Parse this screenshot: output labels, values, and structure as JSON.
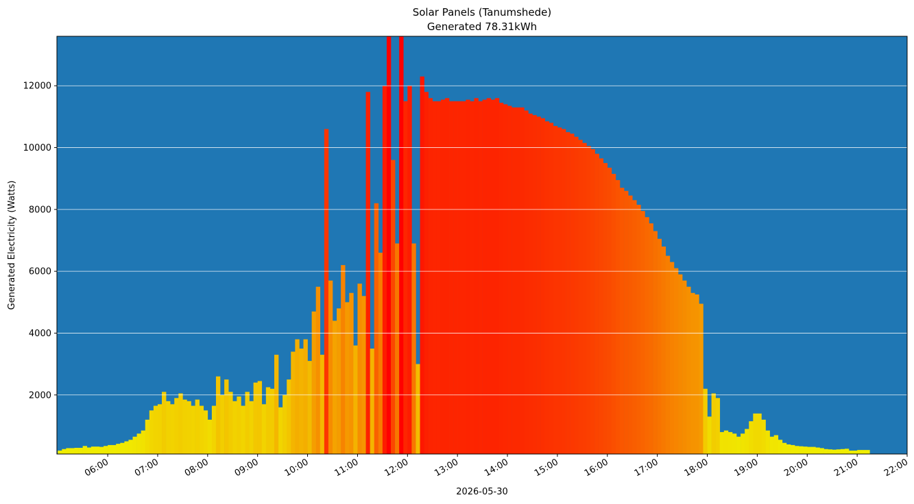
{
  "chart_data": {
    "type": "bar",
    "title": "Solar Panels (Tanumshede)",
    "subtitle": "Generated 78.31kWh",
    "ylabel": "Generated Electricity (Watts)",
    "xlabel": "2026-05-30",
    "background": "#1f77b4",
    "color_low": "#f0f000",
    "color_high": "#ff0000",
    "grid": true,
    "xlim": [
      "04:59",
      "22:00"
    ],
    "xticks": [
      "06:00",
      "07:00",
      "08:00",
      "09:00",
      "10:00",
      "11:00",
      "12:00",
      "13:00",
      "14:00",
      "15:00",
      "16:00",
      "17:00",
      "18:00",
      "19:00",
      "20:00",
      "21:00",
      "22:00"
    ],
    "ylim": [
      90,
      13600
    ],
    "yticks": [
      2000,
      4000,
      6000,
      8000,
      10000,
      12000
    ],
    "x": [
      "05:00",
      "05:05",
      "05:10",
      "05:15",
      "05:20",
      "05:25",
      "05:30",
      "05:35",
      "05:40",
      "05:45",
      "05:50",
      "05:55",
      "06:00",
      "06:05",
      "06:10",
      "06:15",
      "06:20",
      "06:25",
      "06:30",
      "06:35",
      "06:40",
      "06:45",
      "06:50",
      "06:55",
      "07:00",
      "07:05",
      "07:10",
      "07:15",
      "07:20",
      "07:25",
      "07:30",
      "07:35",
      "07:40",
      "07:45",
      "07:50",
      "07:55",
      "08:00",
      "08:05",
      "08:10",
      "08:15",
      "08:20",
      "08:25",
      "08:30",
      "08:35",
      "08:40",
      "08:45",
      "08:50",
      "08:55",
      "09:00",
      "09:05",
      "09:10",
      "09:15",
      "09:20",
      "09:25",
      "09:30",
      "09:35",
      "09:40",
      "09:45",
      "09:50",
      "09:55",
      "10:00",
      "10:05",
      "10:10",
      "10:15",
      "10:20",
      "10:25",
      "10:30",
      "10:35",
      "10:40",
      "10:45",
      "10:50",
      "10:55",
      "11:00",
      "11:05",
      "11:10",
      "11:15",
      "11:20",
      "11:25",
      "11:30",
      "11:35",
      "11:40",
      "11:45",
      "11:50",
      "11:55",
      "12:00",
      "12:05",
      "12:10",
      "12:15",
      "12:20",
      "12:25",
      "12:30",
      "12:35",
      "12:40",
      "12:45",
      "12:50",
      "12:55",
      "13:00",
      "13:05",
      "13:10",
      "13:15",
      "13:20",
      "13:25",
      "13:30",
      "13:35",
      "13:40",
      "13:45",
      "13:50",
      "13:55",
      "14:00",
      "14:05",
      "14:10",
      "14:15",
      "14:20",
      "14:25",
      "14:30",
      "14:35",
      "14:40",
      "14:45",
      "14:50",
      "14:55",
      "15:00",
      "15:05",
      "15:10",
      "15:15",
      "15:20",
      "15:25",
      "15:30",
      "15:35",
      "15:40",
      "15:45",
      "15:50",
      "15:55",
      "16:00",
      "16:05",
      "16:10",
      "16:15",
      "16:20",
      "16:25",
      "16:30",
      "16:35",
      "16:40",
      "16:45",
      "16:50",
      "16:55",
      "17:00",
      "17:05",
      "17:10",
      "17:15",
      "17:20",
      "17:25",
      "17:30",
      "17:35",
      "17:40",
      "17:45",
      "17:50",
      "17:55",
      "18:00",
      "18:05",
      "18:10",
      "18:15",
      "18:20",
      "18:25",
      "18:30",
      "18:35",
      "18:40",
      "18:45",
      "18:50",
      "18:55",
      "19:00",
      "19:05",
      "19:10",
      "19:15",
      "19:20",
      "19:25",
      "19:30",
      "19:35",
      "19:40",
      "19:45",
      "19:50",
      "19:55",
      "20:00",
      "20:05",
      "20:10",
      "20:15",
      "20:20",
      "20:25",
      "20:30",
      "20:35",
      "20:40",
      "20:45",
      "20:50",
      "20:55",
      "21:00",
      "21:05",
      "21:10",
      "21:15",
      "21:20",
      "21:25",
      "21:30"
    ],
    "values": [
      200,
      250,
      280,
      280,
      290,
      290,
      350,
      300,
      330,
      330,
      320,
      350,
      380,
      380,
      420,
      450,
      500,
      550,
      650,
      750,
      850,
      1200,
      1500,
      1650,
      1700,
      2100,
      1800,
      1700,
      1900,
      2050,
      1850,
      1800,
      1650,
      1850,
      1650,
      1500,
      1200,
      1650,
      2600,
      2000,
      2500,
      2100,
      1800,
      1950,
      1650,
      2100,
      1800,
      2400,
      2450,
      1700,
      2250,
      2200,
      3300,
      1600,
      2000,
      2500,
      3400,
      3800,
      3500,
      3800,
      3100,
      4700,
      5500,
      3300,
      10600,
      5700,
      4400,
      4800,
      6200,
      5000,
      5300,
      3600,
      5600,
      5200,
      11800,
      3500,
      8200,
      6600,
      12000,
      13600,
      9600,
      6900,
      13600,
      11500,
      12000,
      6900,
      3000,
      12300,
      11800,
      11600,
      11500,
      11500,
      11550,
      11600,
      11500,
      11500,
      11500,
      11500,
      11550,
      11500,
      11600,
      11500,
      11550,
      11600,
      11550,
      11600,
      11450,
      11400,
      11350,
      11300,
      11300,
      11300,
      11200,
      11100,
      11050,
      11000,
      10950,
      10850,
      10800,
      10700,
      10650,
      10600,
      10500,
      10450,
      10350,
      10250,
      10150,
      10050,
      9950,
      9800,
      9650,
      9500,
      9350,
      9150,
      8950,
      8700,
      8600,
      8450,
      8300,
      8150,
      7950,
      7750,
      7550,
      7300,
      7050,
      6800,
      6500,
      6300,
      6100,
      5900,
      5700,
      5500,
      5300,
      5250,
      4950,
      2200,
      1300,
      2050,
      1900,
      800,
      850,
      800,
      750,
      650,
      750,
      900,
      1150,
      1400,
      1400,
      1200,
      850,
      650,
      700,
      550,
      450,
      400,
      380,
      350,
      340,
      330,
      320,
      320,
      300,
      280,
      250,
      240,
      230,
      240,
      250,
      260,
      200,
      200,
      220,
      220,
      220,
      100,
      100,
      100,
      100
    ]
  }
}
